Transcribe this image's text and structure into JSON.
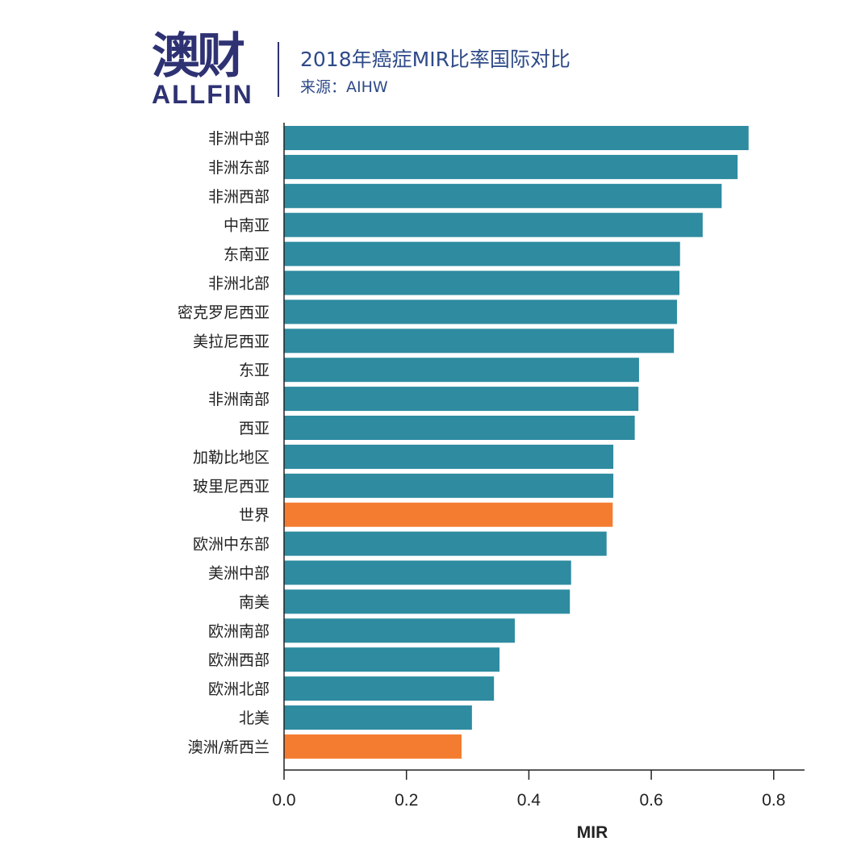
{
  "header": {
    "logo_cn": "澳财",
    "logo_en": "ALLFIN",
    "title": "2018年癌症MIR比率国际对比",
    "subtitle": "来源：AIHW"
  },
  "chart_data": {
    "type": "bar",
    "orientation": "horizontal",
    "title": "2018年癌症MIR比率国际对比",
    "xlabel": "MIR",
    "ylabel": "",
    "xlim": [
      0,
      0.85
    ],
    "xticks": [
      "0.0",
      "0.2",
      "0.4",
      "0.6",
      "0.8"
    ],
    "grid": false,
    "categories": [
      "非洲中部",
      "非洲东部",
      "非洲西部",
      "中南亚",
      "东南亚",
      "非洲北部",
      "密克罗尼西亚",
      "美拉尼西亚",
      "东亚",
      "非洲南部",
      "西亚",
      "加勒比地区",
      "玻里尼西亚",
      "世界",
      "欧洲中东部",
      "美洲中部",
      "南美",
      "欧洲南部",
      "欧洲西部",
      "欧洲北部",
      "北美",
      "澳洲/新西兰"
    ],
    "values": [
      0.759,
      0.741,
      0.715,
      0.684,
      0.647,
      0.646,
      0.642,
      0.637,
      0.58,
      0.579,
      0.573,
      0.538,
      0.538,
      0.537,
      0.527,
      0.469,
      0.467,
      0.377,
      0.352,
      0.343,
      0.307,
      0.29
    ],
    "highlighted": [
      "世界",
      "澳洲/新西兰"
    ],
    "colors": {
      "default": "#2e8ba0",
      "highlight": "#f47c30"
    }
  }
}
